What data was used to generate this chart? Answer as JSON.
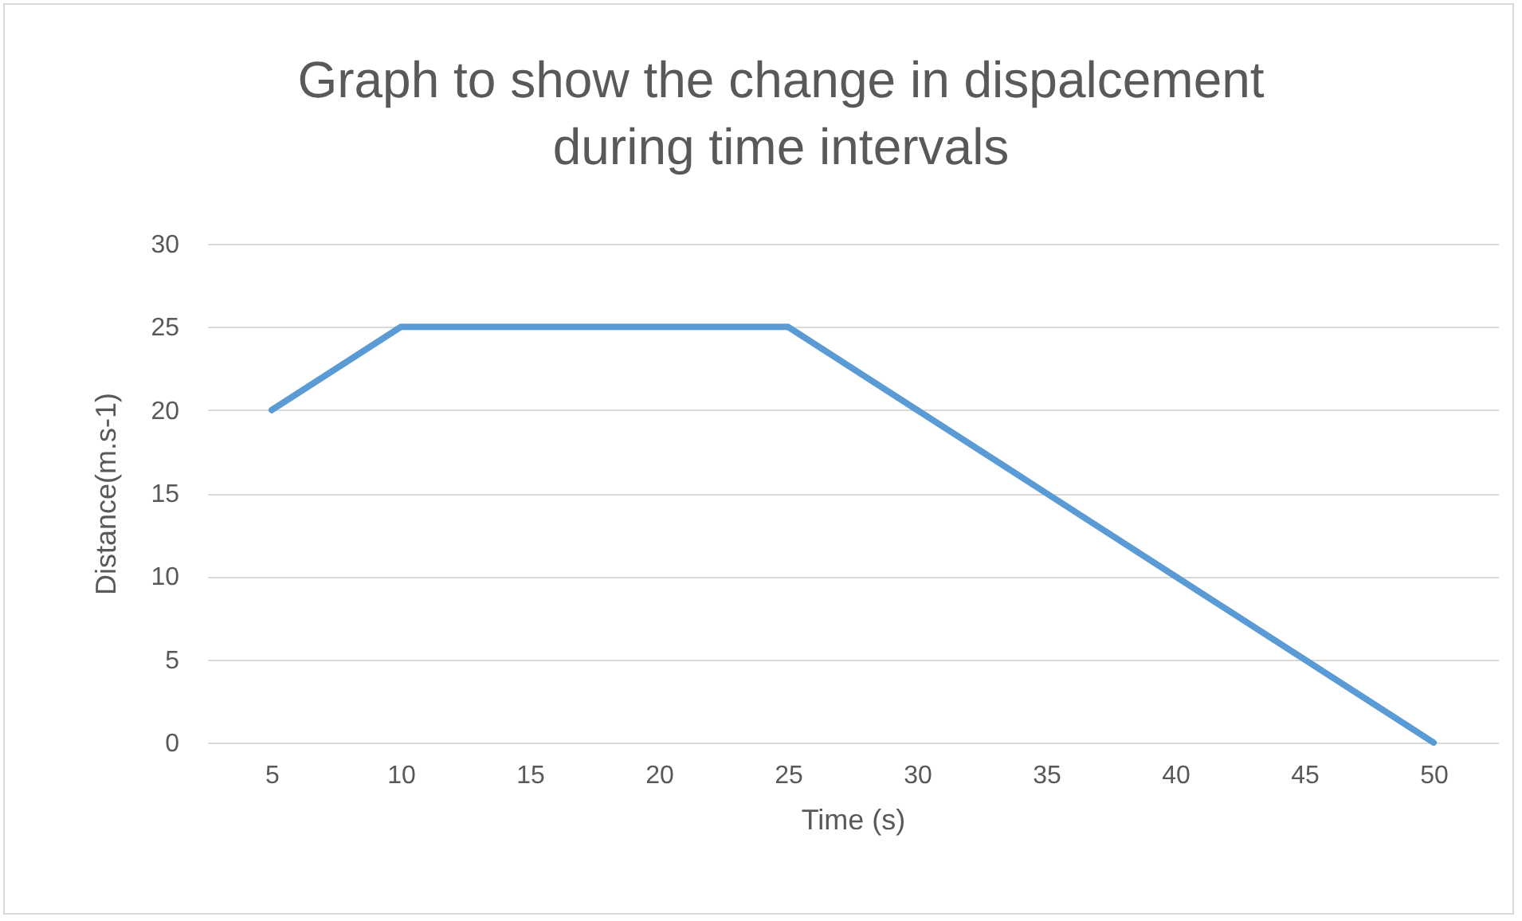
{
  "chart_data": {
    "type": "line",
    "title": "Graph to show the change in dispalcement during time intervals",
    "xlabel": "Time (s)",
    "ylabel": "Distance(m.s-1)",
    "categories": [
      "5",
      "10",
      "15",
      "20",
      "25",
      "30",
      "35",
      "40",
      "45",
      "50"
    ],
    "series": [
      {
        "color": "#5b9bd5",
        "values": [
          20,
          25,
          25,
          25,
          25,
          20,
          15,
          10,
          5,
          0
        ]
      }
    ],
    "ylim": [
      0,
      30
    ],
    "yticks": [
      0,
      5,
      10,
      15,
      20,
      25,
      30
    ],
    "grid": "y",
    "line_style": "solid"
  }
}
